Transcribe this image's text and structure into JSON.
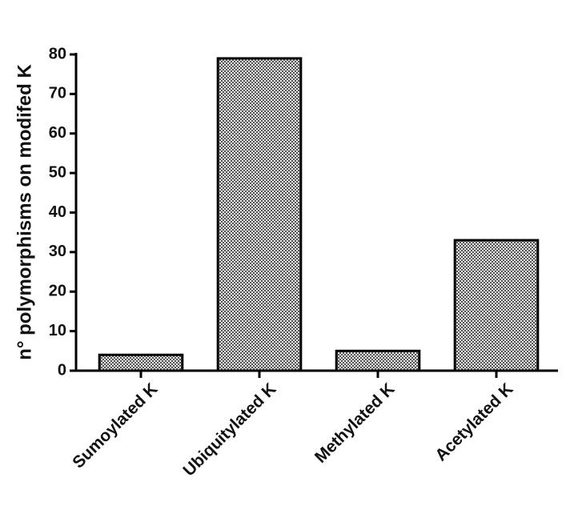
{
  "chart_data": {
    "type": "bar",
    "y_label": "n° polymorphisms on modifed K",
    "categories": [
      "Sumoylated K",
      "Ubiquitylated K",
      "Methylated K",
      "Acetylated K"
    ],
    "values": [
      4,
      79,
      5,
      33
    ],
    "ylim": [
      0,
      80
    ],
    "yticks": [
      0,
      10,
      20,
      30,
      40,
      50,
      60,
      70,
      80
    ]
  }
}
